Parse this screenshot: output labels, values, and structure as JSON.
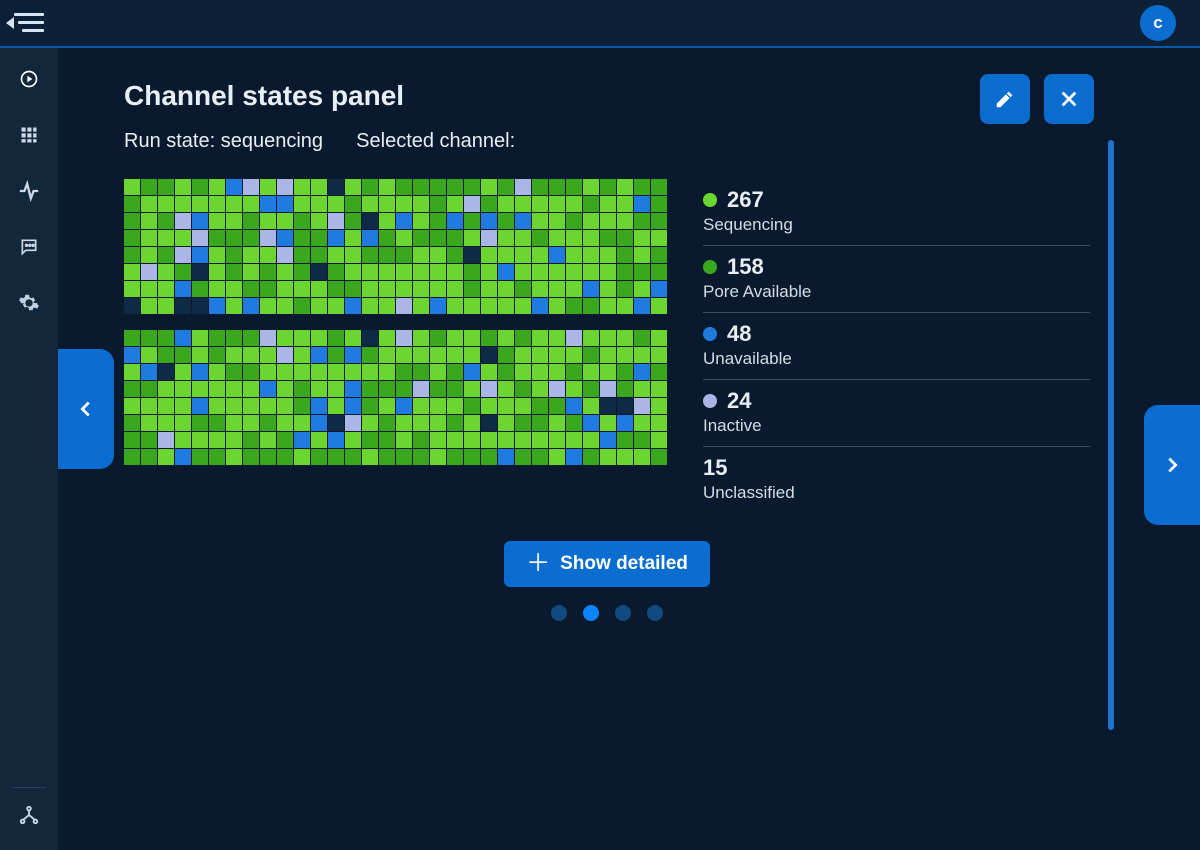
{
  "header": {
    "avatar_initial": "c"
  },
  "panel": {
    "title": "Channel states panel",
    "run_state_label": "Run state:",
    "run_state_value": "sequencing",
    "selected_channel_label": "Selected channel:",
    "selected_channel_value": ""
  },
  "toolbar": {
    "show_detailed_label": "Show detailed"
  },
  "colors": {
    "sequencing": "#6bd631",
    "pore_available": "#3aa81f",
    "unavailable": "#1f7be0",
    "inactive": "#a9b6e6",
    "unclassified": "#0f2a45",
    "cell_border": "#0a1a2e",
    "accent": "#0a6dcf",
    "bg": "#0a1a2e"
  },
  "legend": [
    {
      "key": "sequencing",
      "count": 267,
      "label": "Sequencing",
      "dot": "#6bd631"
    },
    {
      "key": "pore_available",
      "count": 158,
      "label": "Pore Available",
      "dot": "#3aa81f"
    },
    {
      "key": "unavailable",
      "count": 48,
      "label": "Unavailable",
      "dot": "#1f7be0"
    },
    {
      "key": "inactive",
      "count": 24,
      "label": "Inactive",
      "dot": "#a9b6e6"
    },
    {
      "key": "unclassified",
      "count": 15,
      "label": "Unclassified",
      "dot": null
    }
  ],
  "grid": {
    "blocks": 2,
    "rows_per_block": 8,
    "cols": 32,
    "counts": {
      "sequencing": 267,
      "pore_available": 158,
      "unavailable": 48,
      "inactive": 24,
      "unclassified": 15
    },
    "seed": 20240513
  },
  "pager": {
    "total": 4,
    "active": 1
  }
}
